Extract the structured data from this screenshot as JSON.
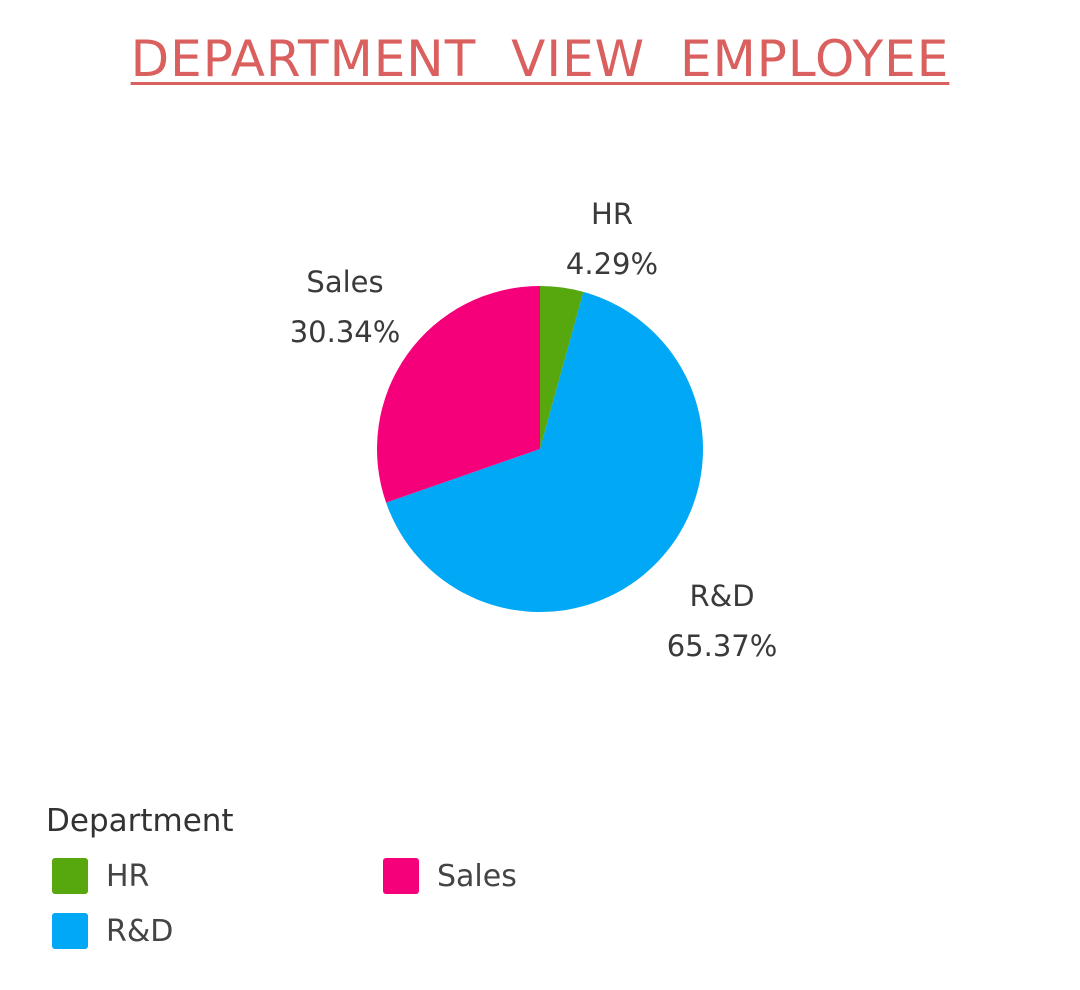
{
  "title": "DEPARTMENT  VIEW  EMPLOYEE",
  "chart_data": {
    "type": "pie",
    "categories": [
      "HR",
      "R&D",
      "Sales"
    ],
    "values": [
      4.29,
      65.37,
      30.34
    ],
    "value_labels": [
      "4.29%",
      "65.37%",
      "30.34%"
    ],
    "colors": [
      "#57a70f",
      "#00a8f5",
      "#f5007a"
    ],
    "legend_title": "Department",
    "legend_placement": "bottom-left",
    "legend": [
      "HR",
      "R&D",
      "Sales"
    ]
  }
}
